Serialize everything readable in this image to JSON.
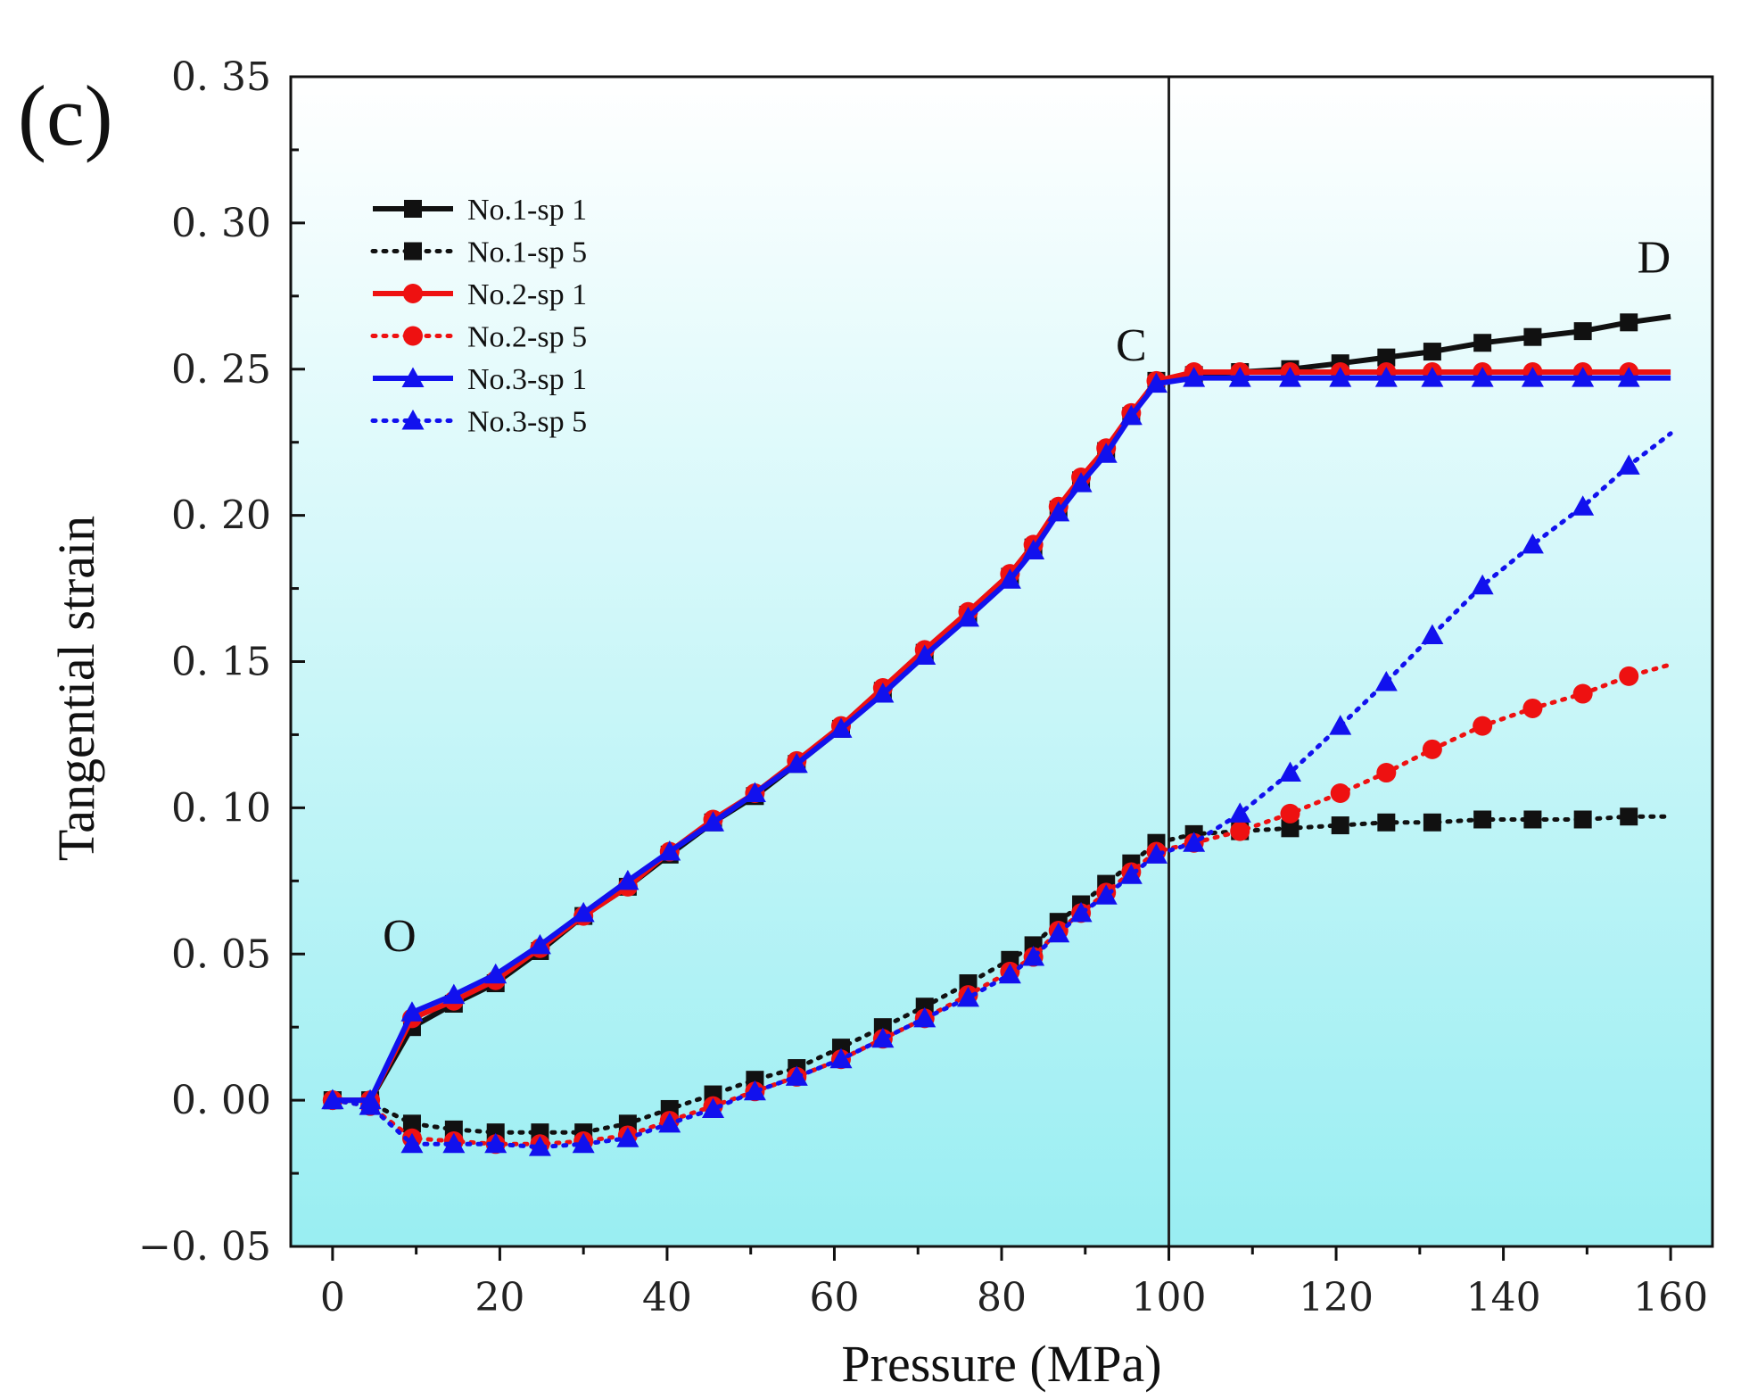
{
  "panel_label": "(c)",
  "chart_data": {
    "type": "line",
    "title": "",
    "xlabel": "Pressure (MPa)",
    "ylabel": "Tangential strain",
    "xlim": [
      -5,
      165
    ],
    "ylim": [
      -0.05,
      0.35
    ],
    "xticks": [
      0,
      20,
      40,
      60,
      80,
      100,
      120,
      140,
      160
    ],
    "xtick_labels": [
      "0",
      "20",
      "40",
      "60",
      "80",
      "100",
      "120",
      "140",
      "160"
    ],
    "yticks": [
      -0.05,
      0,
      0.05,
      0.1,
      0.15,
      0.2,
      0.25,
      0.3,
      0.35
    ],
    "ytick_labels": [
      "−0. 05",
      "0. 00",
      "0. 05",
      "0. 10",
      "0. 15",
      "0. 20",
      "0. 25",
      "0. 30",
      "0. 35"
    ],
    "background": {
      "top": "#ffffff",
      "bottom": "#99eef2"
    },
    "vertical_line": {
      "x": 100,
      "color": "#222222"
    },
    "annotations": [
      {
        "text": "O",
        "x": 8,
        "y": 0.051
      },
      {
        "text": "C",
        "x": 95.5,
        "y": 0.253
      },
      {
        "text": "D",
        "x": 158,
        "y": 0.283
      }
    ],
    "legend": {
      "position": "top-left"
    },
    "series": [
      {
        "name": "No.1-sp 1",
        "color": "#111111",
        "line": "solid",
        "marker": "square",
        "x": [
          0,
          4.5,
          9.5,
          14.5,
          19.5,
          24.8,
          30,
          35.3,
          40.3,
          45.5,
          50.5,
          55.5,
          60.8,
          65.8,
          70.8,
          76,
          81,
          83.8,
          86.8,
          89.5,
          92.5,
          95.5,
          98.5,
          103,
          108.5,
          114.5,
          120.5,
          126,
          131.5,
          137.5,
          143.5,
          149.5,
          155,
          160
        ],
        "y": [
          0,
          0,
          0.025,
          0.033,
          0.04,
          0.051,
          0.063,
          0.073,
          0.084,
          0.095,
          0.104,
          0.115,
          0.127,
          0.14,
          0.153,
          0.166,
          0.179,
          0.189,
          0.202,
          0.212,
          0.222,
          0.234,
          0.246,
          0.248,
          0.249,
          0.25,
          0.252,
          0.254,
          0.256,
          0.259,
          0.261,
          0.263,
          0.266,
          0.268
        ]
      },
      {
        "name": "No.1-sp 5",
        "color": "#111111",
        "line": "dotted",
        "marker": "square",
        "x": [
          0,
          4.5,
          9.5,
          14.5,
          19.5,
          24.8,
          30,
          35.3,
          40.3,
          45.5,
          50.5,
          55.5,
          60.8,
          65.8,
          70.8,
          76,
          81,
          83.8,
          86.8,
          89.5,
          92.5,
          95.5,
          98.5,
          103,
          108.5,
          114.5,
          120.5,
          126,
          131.5,
          137.5,
          143.5,
          149.5,
          155,
          160
        ],
        "y": [
          0,
          -0.001,
          -0.008,
          -0.01,
          -0.011,
          -0.011,
          -0.011,
          -0.008,
          -0.003,
          0.002,
          0.007,
          0.011,
          0.018,
          0.025,
          0.032,
          0.04,
          0.048,
          0.053,
          0.061,
          0.067,
          0.074,
          0.081,
          0.088,
          0.091,
          0.092,
          0.093,
          0.094,
          0.095,
          0.095,
          0.096,
          0.096,
          0.096,
          0.097,
          0.097
        ]
      },
      {
        "name": "No.2-sp 1",
        "color": "#ee1111",
        "line": "solid",
        "marker": "circle",
        "x": [
          0,
          4.5,
          9.5,
          14.5,
          19.5,
          24.8,
          30,
          35.3,
          40.3,
          45.5,
          50.5,
          55.5,
          60.8,
          65.8,
          70.8,
          76,
          81,
          83.8,
          86.8,
          89.5,
          92.5,
          95.5,
          98.5,
          103,
          108.5,
          114.5,
          120.5,
          126,
          131.5,
          137.5,
          143.5,
          149.5,
          155,
          160
        ],
        "y": [
          0,
          0,
          0.028,
          0.034,
          0.041,
          0.052,
          0.063,
          0.073,
          0.085,
          0.096,
          0.105,
          0.116,
          0.128,
          0.141,
          0.154,
          0.167,
          0.18,
          0.19,
          0.203,
          0.213,
          0.223,
          0.235,
          0.246,
          0.249,
          0.249,
          0.249,
          0.249,
          0.249,
          0.249,
          0.249,
          0.249,
          0.249,
          0.249,
          0.249
        ]
      },
      {
        "name": "No.2-sp 5",
        "color": "#ee1111",
        "line": "dotted",
        "marker": "circle",
        "x": [
          0,
          4.5,
          9.5,
          14.5,
          19.5,
          24.8,
          30,
          35.3,
          40.3,
          45.5,
          50.5,
          55.5,
          60.8,
          65.8,
          70.8,
          76,
          81,
          83.8,
          86.8,
          89.5,
          92.5,
          95.5,
          98.5,
          103,
          108.5,
          114.5,
          120.5,
          126,
          131.5,
          137.5,
          143.5,
          149.5,
          155,
          160
        ],
        "y": [
          0,
          -0.002,
          -0.013,
          -0.014,
          -0.015,
          -0.015,
          -0.014,
          -0.012,
          -0.007,
          -0.002,
          0.003,
          0.008,
          0.014,
          0.021,
          0.028,
          0.036,
          0.044,
          0.049,
          0.058,
          0.064,
          0.071,
          0.078,
          0.085,
          0.088,
          0.092,
          0.098,
          0.105,
          0.112,
          0.12,
          0.128,
          0.134,
          0.139,
          0.145,
          0.149
        ]
      },
      {
        "name": "No.3-sp 1",
        "color": "#1111ee",
        "line": "solid",
        "marker": "triangle",
        "x": [
          0,
          4.5,
          9.5,
          14.5,
          19.5,
          24.8,
          30,
          35.3,
          40.3,
          45.5,
          50.5,
          55.5,
          60.8,
          65.8,
          70.8,
          76,
          81,
          83.8,
          86.8,
          89.5,
          92.5,
          95.5,
          98.5,
          103,
          108.5,
          114.5,
          120.5,
          126,
          131.5,
          137.5,
          143.5,
          149.5,
          155,
          160
        ],
        "y": [
          0,
          0,
          0.03,
          0.036,
          0.043,
          0.053,
          0.064,
          0.075,
          0.085,
          0.095,
          0.105,
          0.115,
          0.127,
          0.139,
          0.152,
          0.165,
          0.178,
          0.188,
          0.201,
          0.211,
          0.221,
          0.234,
          0.245,
          0.247,
          0.247,
          0.247,
          0.247,
          0.247,
          0.247,
          0.247,
          0.247,
          0.247,
          0.247,
          0.247
        ]
      },
      {
        "name": "No.3-sp 5",
        "color": "#1111ee",
        "line": "dotted",
        "marker": "triangle",
        "x": [
          0,
          4.5,
          9.5,
          14.5,
          19.5,
          24.8,
          30,
          35.3,
          40.3,
          45.5,
          50.5,
          55.5,
          60.8,
          65.8,
          70.8,
          76,
          81,
          83.8,
          86.8,
          89.5,
          92.5,
          95.5,
          98.5,
          103,
          108.5,
          114.5,
          120.5,
          126,
          131.5,
          137.5,
          143.5,
          149.5,
          155,
          160
        ],
        "y": [
          0,
          -0.002,
          -0.015,
          -0.015,
          -0.015,
          -0.016,
          -0.015,
          -0.013,
          -0.008,
          -0.003,
          0.003,
          0.008,
          0.014,
          0.021,
          0.028,
          0.035,
          0.043,
          0.049,
          0.057,
          0.064,
          0.07,
          0.077,
          0.084,
          0.088,
          0.098,
          0.112,
          0.128,
          0.143,
          0.159,
          0.176,
          0.19,
          0.203,
          0.217,
          0.228
        ]
      }
    ]
  }
}
